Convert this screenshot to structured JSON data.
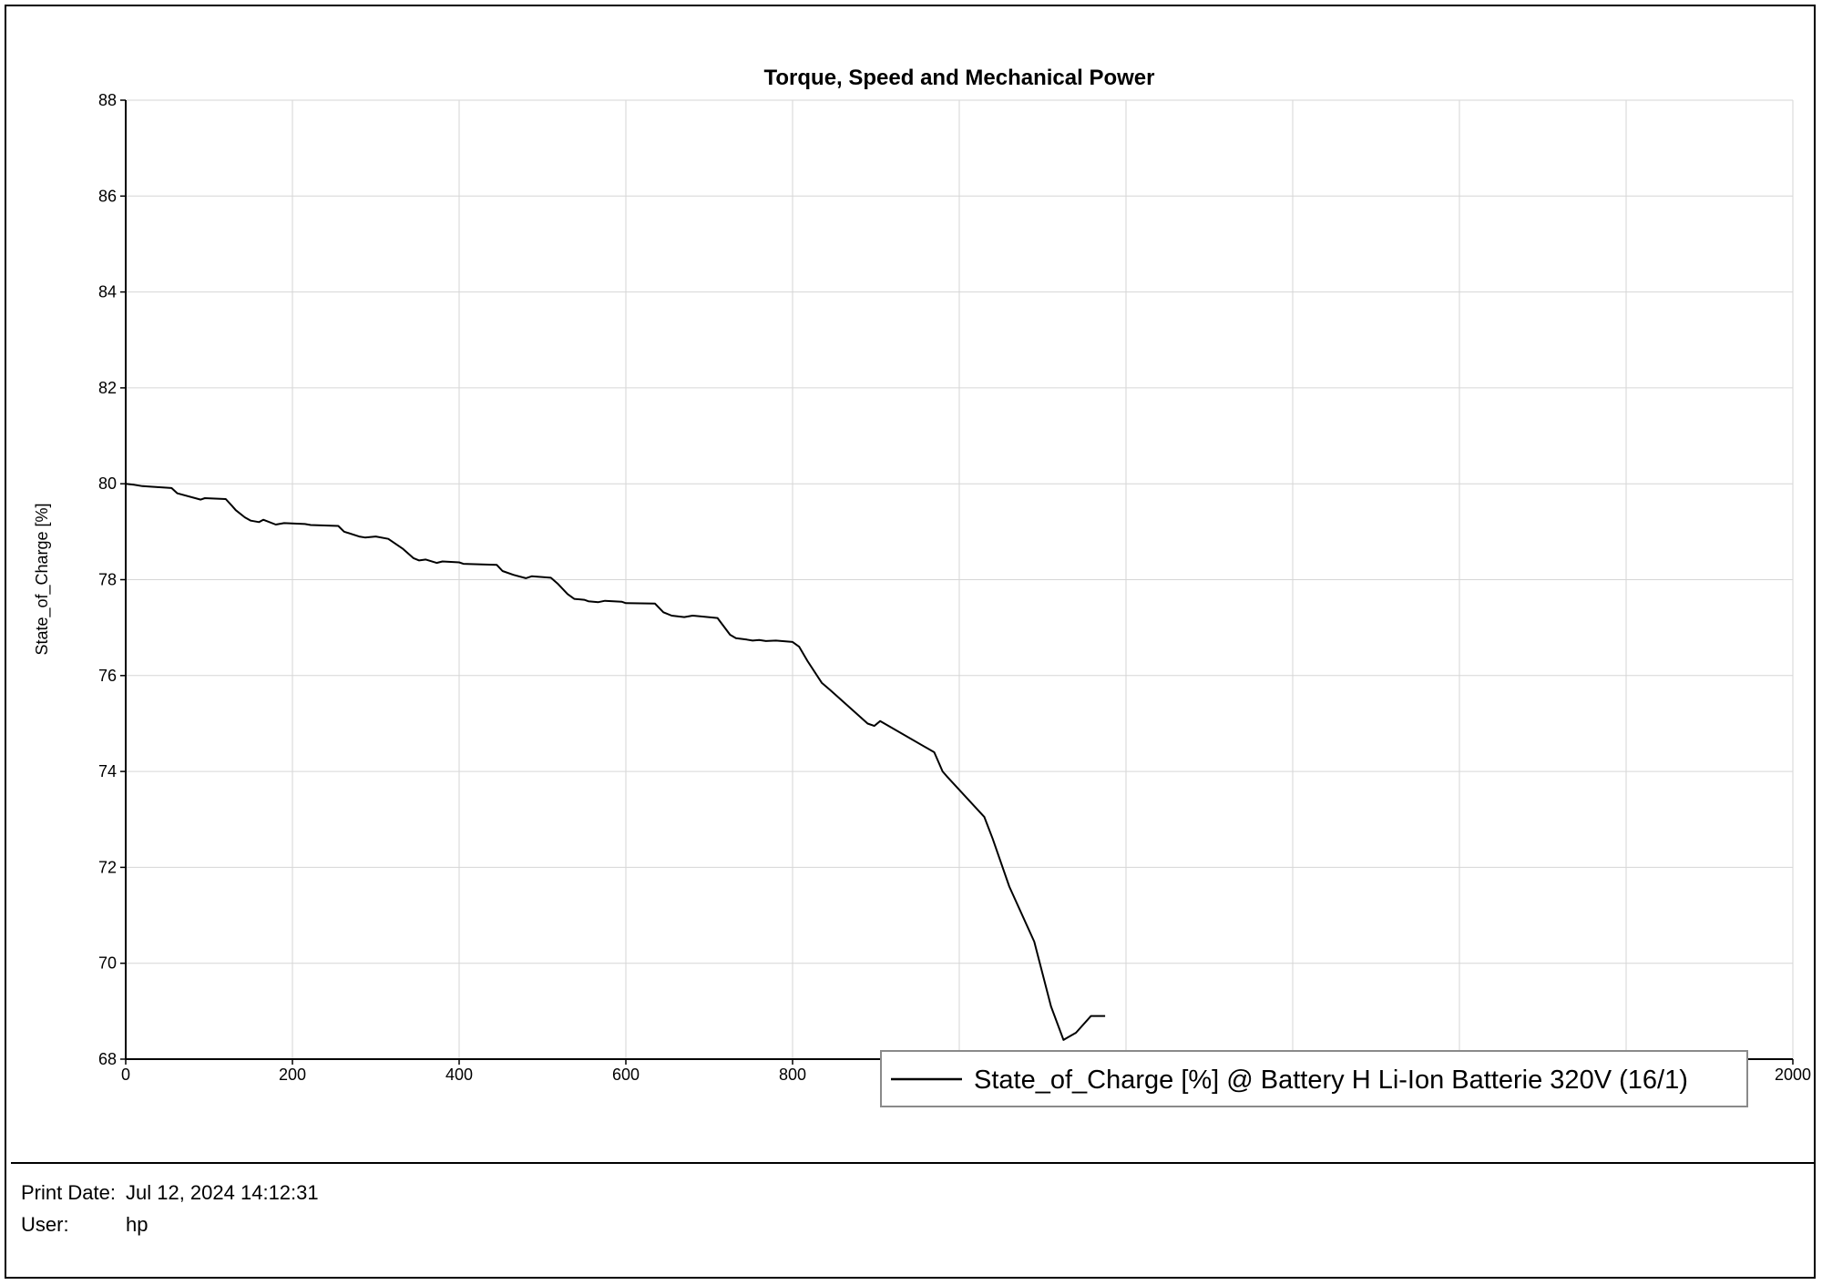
{
  "chart_data": {
    "type": "line",
    "title": "Torque, Speed and Mechanical Power",
    "xlabel": "",
    "ylabel": "State_of_Charge [%]",
    "xlim": [
      0,
      2000
    ],
    "ylim": [
      68,
      88
    ],
    "x_ticks": [
      0,
      200,
      400,
      600,
      800,
      1000,
      1200,
      1400,
      1600,
      1800,
      2000
    ],
    "x_tick_labels": [
      "0",
      "200",
      "400",
      "600",
      "800",
      "",
      "",
      "",
      "",
      "",
      "2000"
    ],
    "y_ticks": [
      68,
      70,
      72,
      74,
      76,
      78,
      80,
      82,
      84,
      86,
      88
    ],
    "y_tick_labels": [
      "68",
      "70",
      "72",
      "74",
      "76",
      "78",
      "80",
      "82",
      "84",
      "86",
      "88"
    ],
    "grid": true,
    "legend_position": "bottom-right",
    "series": [
      {
        "name": "State_of_Charge [%] @ Battery H Li-Ion Batterie 320V (16/1)",
        "color": "#000000",
        "x": [
          0,
          10,
          20,
          30,
          55,
          62,
          90,
          95,
          120,
          127,
          132,
          143,
          150,
          160,
          165,
          180,
          190,
          215,
          222,
          255,
          262,
          280,
          287,
          300,
          315,
          332,
          345,
          352,
          360,
          373,
          380,
          400,
          405,
          445,
          452,
          465,
          480,
          487,
          510,
          518,
          530,
          538,
          550,
          555,
          567,
          575,
          595,
          600,
          635,
          645,
          655,
          670,
          680,
          710,
          725,
          732,
          745,
          752,
          760,
          768,
          780,
          800,
          808,
          818,
          835,
          845,
          890,
          898,
          905,
          970,
          980,
          985,
          1030,
          1040,
          1060,
          1090,
          1110,
          1125,
          1130,
          1140,
          1158,
          1175
        ],
        "y": [
          80,
          79.98,
          79.95,
          79.94,
          79.91,
          79.8,
          79.67,
          79.7,
          79.68,
          79.55,
          79.45,
          79.3,
          79.23,
          79.2,
          79.25,
          79.15,
          79.18,
          79.16,
          79.14,
          79.12,
          79,
          78.9,
          78.88,
          78.9,
          78.85,
          78.65,
          78.45,
          78.4,
          78.42,
          78.35,
          78.38,
          78.36,
          78.33,
          78.31,
          78.18,
          78.1,
          78.03,
          78.07,
          78.04,
          77.92,
          77.7,
          77.6,
          77.58,
          77.55,
          77.53,
          77.56,
          77.54,
          77.51,
          77.5,
          77.32,
          77.25,
          77.22,
          77.25,
          77.2,
          76.85,
          76.78,
          76.75,
          76.73,
          76.74,
          76.72,
          76.73,
          76.7,
          76.6,
          76.3,
          75.85,
          75.7,
          75,
          74.95,
          75.05,
          74.4,
          74,
          73.9,
          73.05,
          72.6,
          71.6,
          70.45,
          69.1,
          68.4,
          68.45,
          68.55,
          68.9,
          68.9
        ]
      }
    ]
  },
  "footer": {
    "print_date_label": "Print Date:",
    "print_date_value": "Jul 12, 2024 14:12:31",
    "user_label": "User:",
    "user_value": "hp"
  }
}
